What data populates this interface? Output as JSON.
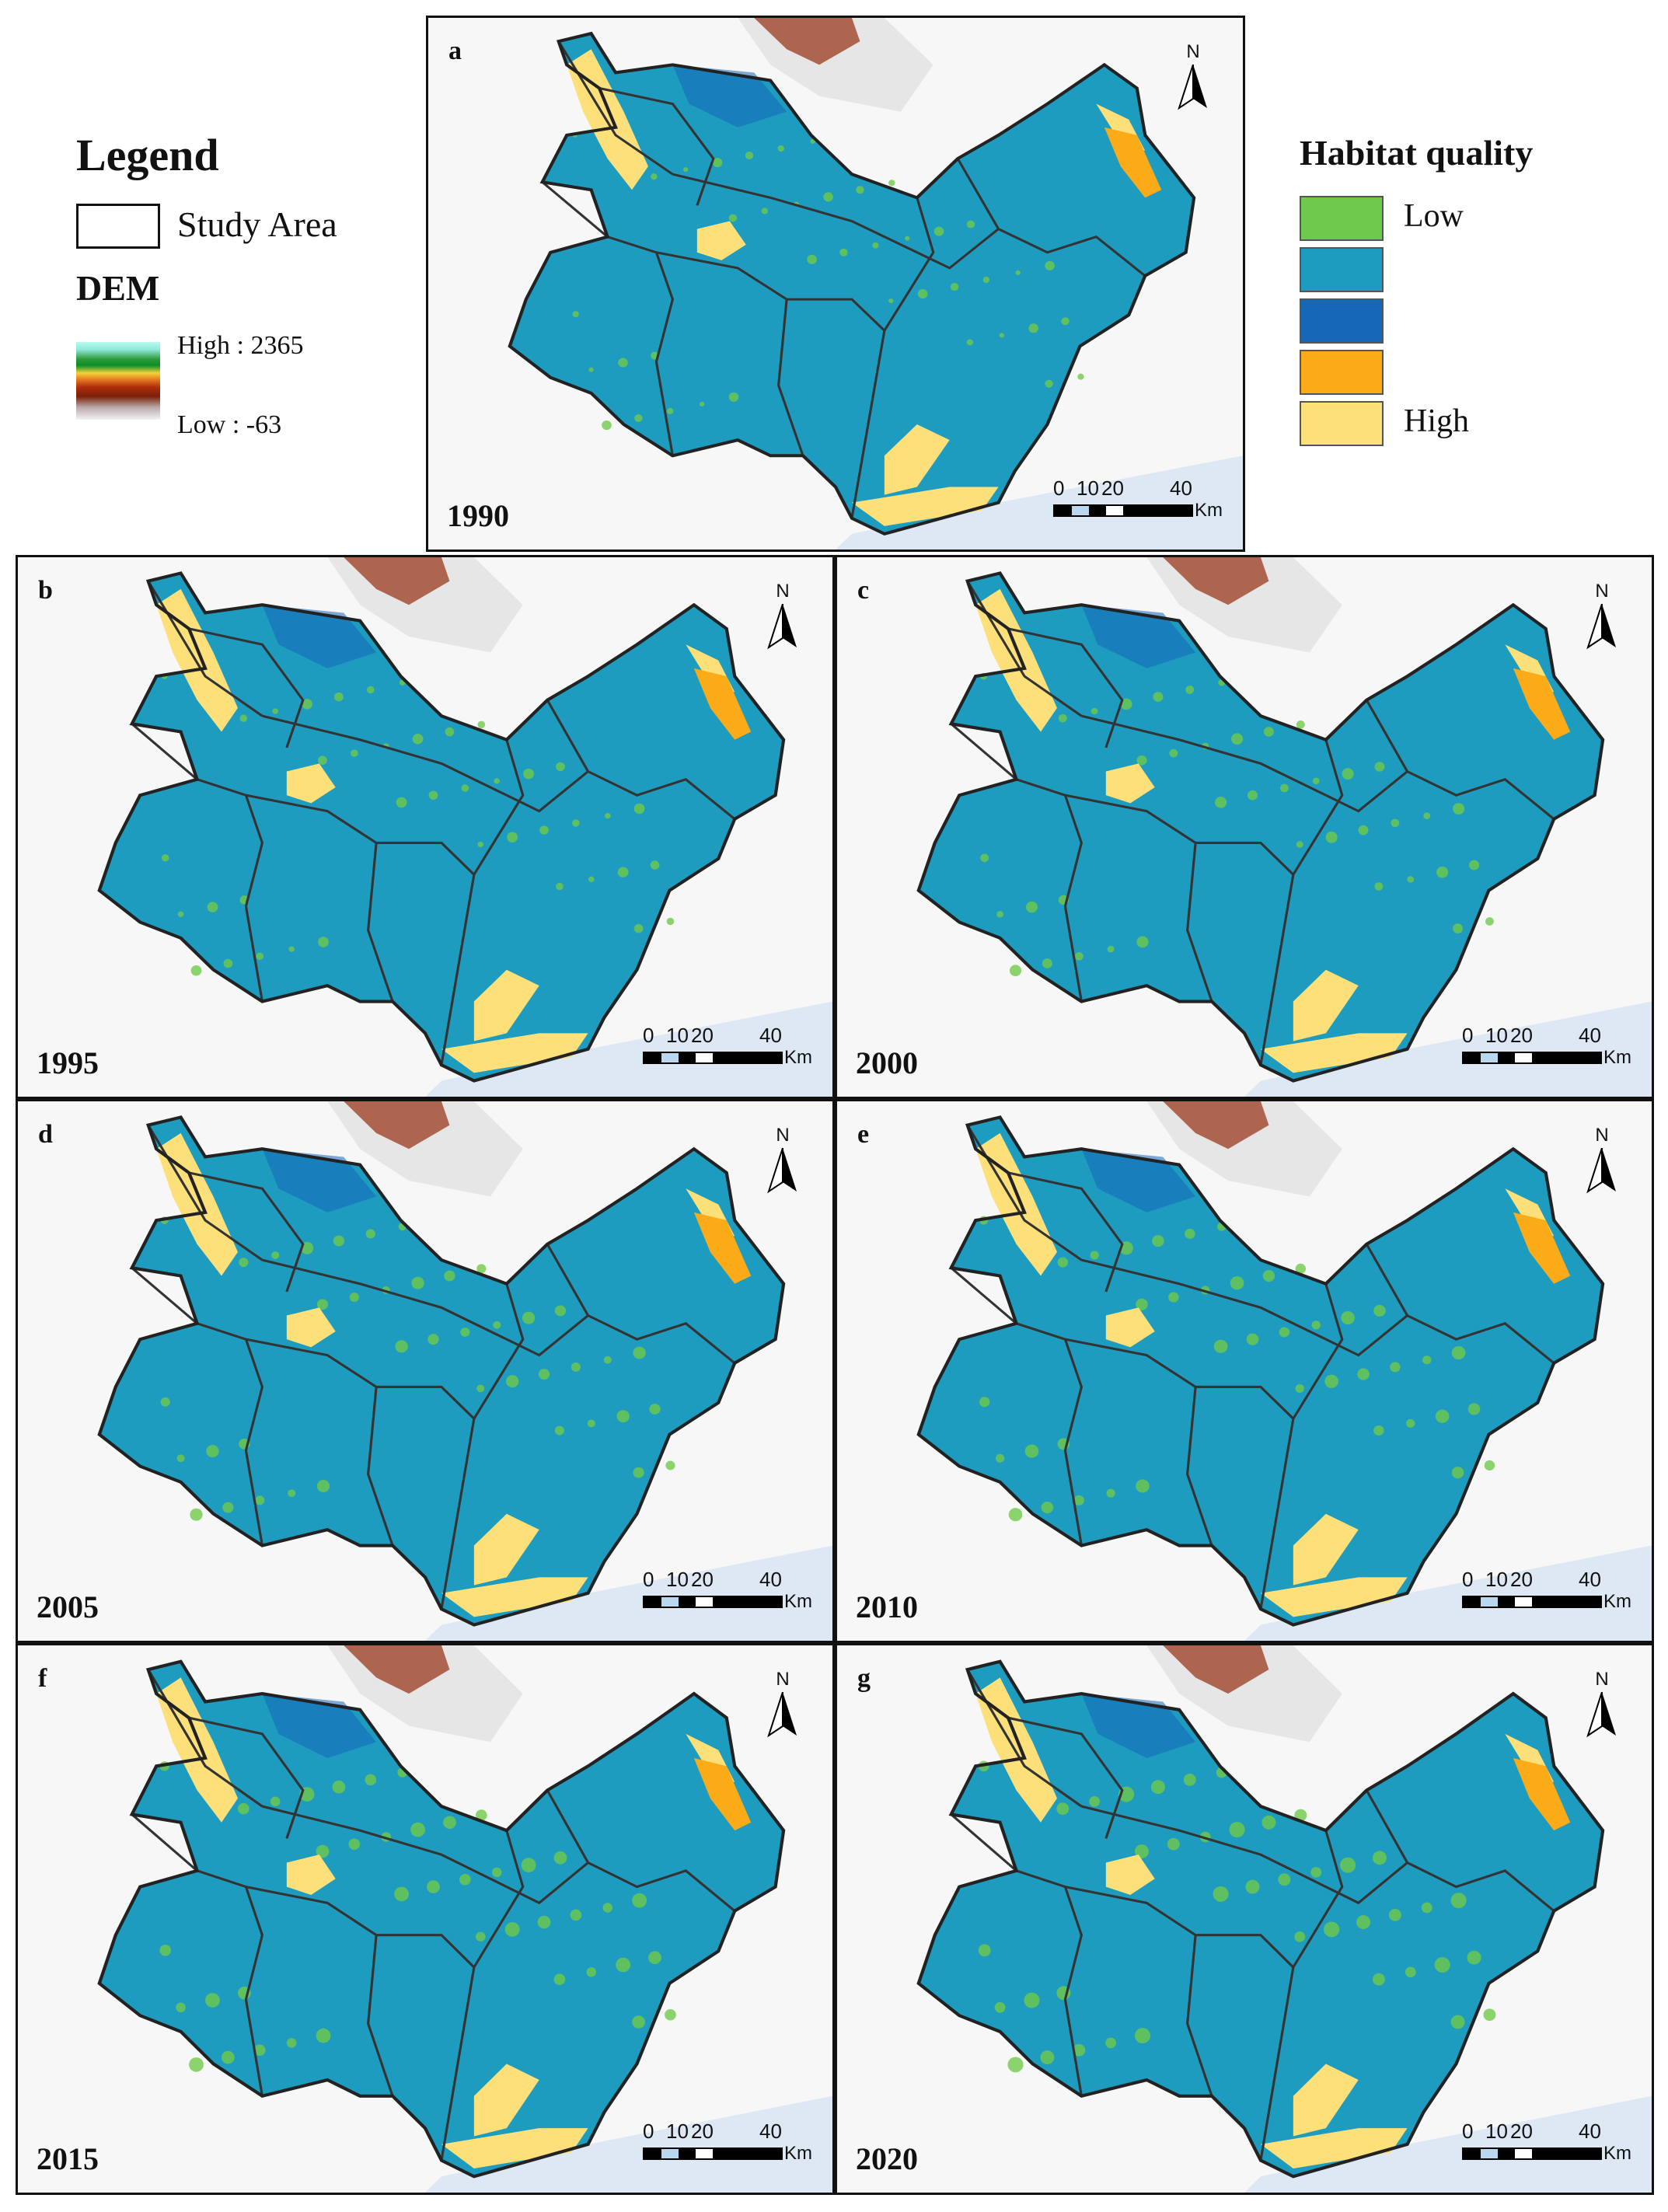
{
  "legend": {
    "title": "Legend",
    "study_area_label": "Study Area",
    "dem_title": "DEM",
    "dem_high": "High : 2365",
    "dem_low": "Low : -63"
  },
  "habitat": {
    "title": "Habitat quality",
    "low_label": "Low",
    "high_label": "High",
    "colors": [
      "#6fc94a",
      "#1e9cc0",
      "#1568b8",
      "#fbab18",
      "#fde07a"
    ]
  },
  "compass": {
    "label": "N"
  },
  "scalebar": {
    "ticks": [
      "0",
      "10",
      "20",
      "40"
    ],
    "unit": "Km"
  },
  "panels": [
    {
      "letter": "a",
      "year": "1990"
    },
    {
      "letter": "b",
      "year": "1995"
    },
    {
      "letter": "c",
      "year": "2000"
    },
    {
      "letter": "d",
      "year": "2005"
    },
    {
      "letter": "e",
      "year": "2010"
    },
    {
      "letter": "f",
      "year": "2015"
    },
    {
      "letter": "g",
      "year": "2020"
    }
  ]
}
